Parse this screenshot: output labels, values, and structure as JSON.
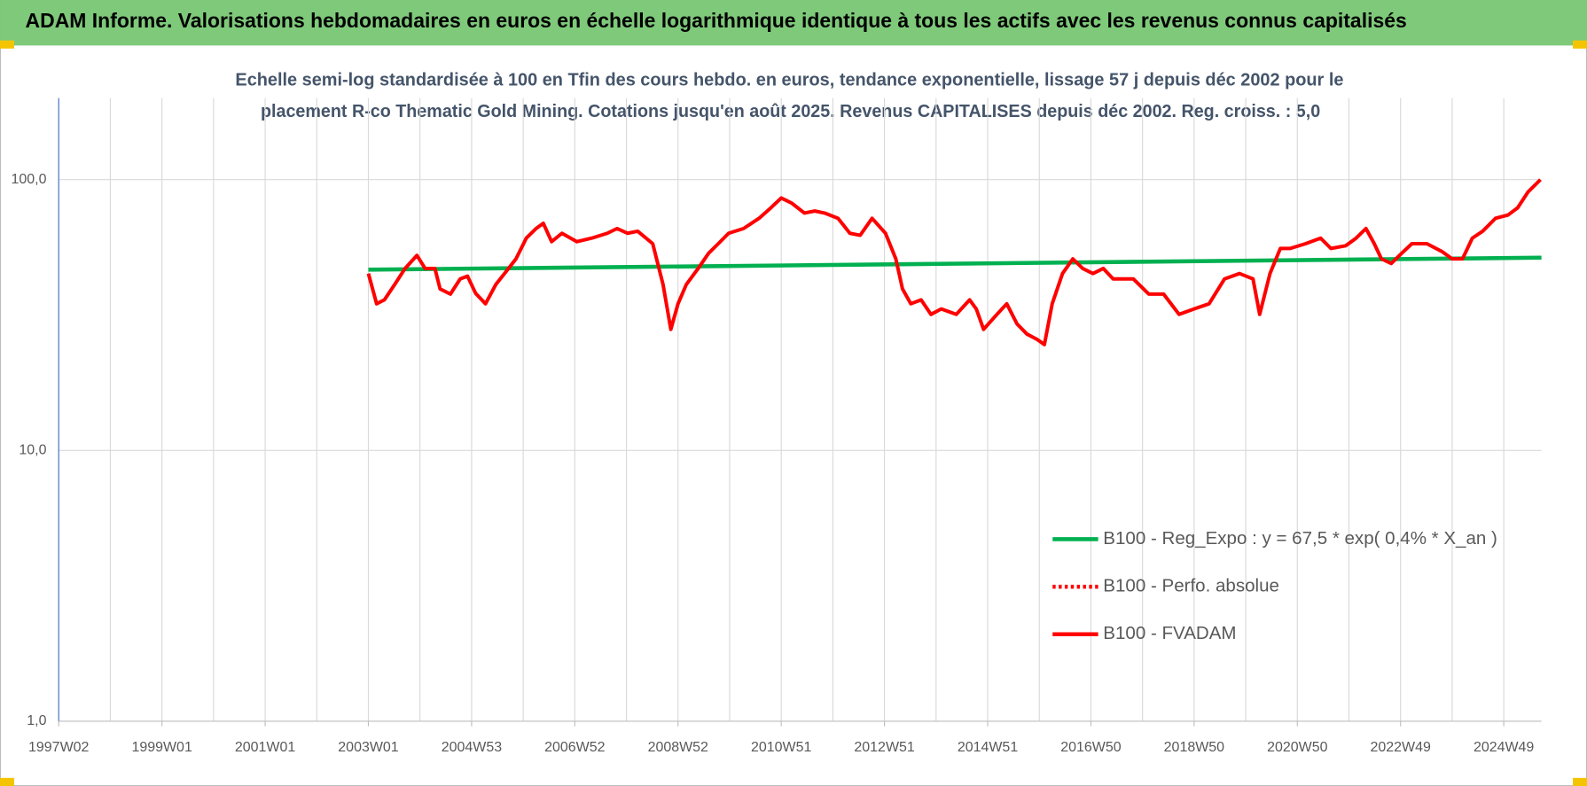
{
  "chart_data": {
    "type": "line",
    "title": "ADAM Informe. Valorisations hebdomadaires en euros en échelle logarithmique identique à tous les actifs avec les revenus connus capitalisés",
    "subtitle": [
      "Echelle semi-log standardisée à 100 en Tfin des cours hebdo. en euros, tendance exponentielle, lissage 57 j depuis déc 2002 pour le",
      "placement R-co Thematic Gold Mining. Cotations jusqu'en août 2025. Revenus CAPITALISES depuis déc 2002. Reg. croiss. : 5,0"
    ],
    "log_scale": true,
    "grid": true,
    "legend_position": "right",
    "xlim": [
      1997,
      2025.73
    ],
    "xticks": [
      {
        "value": 1997,
        "label": "1997W02"
      },
      {
        "value": 1999,
        "label": "1999W01"
      },
      {
        "value": 2001,
        "label": "2001W01"
      },
      {
        "value": 2003,
        "label": "2003W01"
      },
      {
        "value": 2005,
        "label": "2004W53"
      },
      {
        "value": 2007,
        "label": "2006W52"
      },
      {
        "value": 2009,
        "label": "2008W52"
      },
      {
        "value": 2011,
        "label": "2010W51"
      },
      {
        "value": 2013,
        "label": "2012W51"
      },
      {
        "value": 2015,
        "label": "2014W51"
      },
      {
        "value": 2017,
        "label": "2016W50"
      },
      {
        "value": 2019,
        "label": "2018W50"
      },
      {
        "value": 2021,
        "label": "2020W50"
      },
      {
        "value": 2023,
        "label": "2022W49"
      },
      {
        "value": 2025,
        "label": "2024W49"
      }
    ],
    "ylim": [
      1,
      200
    ],
    "yticks": [
      {
        "value": 1,
        "label": "1,0"
      },
      {
        "value": 10,
        "label": "10,0"
      },
      {
        "value": 100,
        "label": "100,0"
      }
    ],
    "series": [
      {
        "name": "B100 - Reg_Expo : y = 67,5 * exp( 0,4% *  X_an )",
        "color": "#00b050",
        "style": "solid",
        "x": [
          2003.0,
          2025.73
        ],
        "values": [
          46.5,
          51.5
        ]
      },
      {
        "name": "B100 - Perfo. absolue",
        "color": "#ff0000",
        "style": "dotted",
        "x": [],
        "values": []
      },
      {
        "name": "B100 - FVADAM",
        "color": "#ff0000",
        "style": "solid",
        "x": [
          2003.0,
          2003.16,
          2003.31,
          2003.51,
          2003.71,
          2003.94,
          2004.1,
          2004.29,
          2004.39,
          2004.59,
          2004.78,
          2004.92,
          2005.08,
          2005.27,
          2005.47,
          2005.67,
          2005.86,
          2006.06,
          2006.25,
          2006.39,
          2006.55,
          2006.75,
          2007.04,
          2007.33,
          2007.63,
          2007.82,
          2008.02,
          2008.22,
          2008.51,
          2008.71,
          2008.86,
          2009.0,
          2009.16,
          2009.39,
          2009.59,
          2009.78,
          2009.98,
          2010.27,
          2010.57,
          2010.8,
          2011.0,
          2011.2,
          2011.45,
          2011.65,
          2011.84,
          2012.1,
          2012.33,
          2012.53,
          2012.76,
          2013.02,
          2013.22,
          2013.35,
          2013.51,
          2013.71,
          2013.9,
          2014.1,
          2014.39,
          2014.65,
          2014.78,
          2014.92,
          2015.18,
          2015.37,
          2015.57,
          2015.76,
          2015.96,
          2016.1,
          2016.25,
          2016.45,
          2016.65,
          2016.84,
          2017.04,
          2017.24,
          2017.43,
          2017.82,
          2018.12,
          2018.41,
          2018.71,
          2019.0,
          2019.29,
          2019.59,
          2019.88,
          2020.14,
          2020.27,
          2020.47,
          2020.67,
          2020.86,
          2021.16,
          2021.45,
          2021.65,
          2021.94,
          2022.14,
          2022.33,
          2022.49,
          2022.63,
          2022.82,
          2023.02,
          2023.22,
          2023.51,
          2023.8,
          2024.0,
          2024.2,
          2024.39,
          2024.59,
          2024.84,
          2025.08,
          2025.27,
          2025.47,
          2025.71
        ],
        "values": [
          45,
          34.8,
          36,
          41,
          47,
          52.5,
          47,
          47,
          39.5,
          37.8,
          43,
          44,
          38,
          34.8,
          41,
          45.8,
          51,
          60.8,
          66,
          69,
          59,
          63.4,
          59,
          60.8,
          63.4,
          66,
          63.4,
          64.5,
          58,
          41,
          28,
          34.8,
          41,
          47,
          53.4,
          58,
          63.4,
          66,
          72,
          78.7,
          85.6,
          82,
          75.3,
          76.6,
          75.3,
          72,
          63.4,
          62.3,
          72,
          63.4,
          51,
          39.5,
          34.8,
          36,
          31.8,
          33.3,
          31.8,
          36,
          33.3,
          28,
          31.8,
          34.8,
          29.3,
          26.9,
          25.7,
          24.6,
          34.8,
          45,
          51,
          47,
          45,
          47,
          43,
          43,
          37.8,
          37.8,
          31.8,
          33.3,
          34.8,
          43,
          45,
          43,
          31.8,
          45,
          55.7,
          55.7,
          58,
          60.8,
          55.7,
          57,
          60.8,
          66,
          58,
          51,
          49,
          53.4,
          58,
          58,
          54.3,
          51,
          51,
          60.8,
          64.5,
          72,
          74,
          78.7,
          90,
          100
        ]
      }
    ]
  }
}
